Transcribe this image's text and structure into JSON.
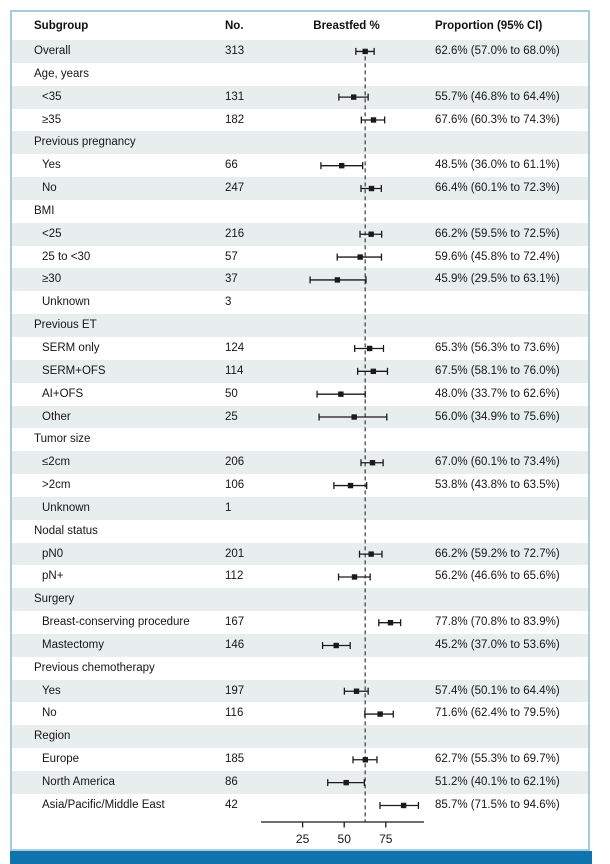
{
  "header": {
    "subgroup": "Subgroup",
    "no": "No.",
    "plot": "Breastfed %",
    "ci": "Proportion (95% CI)"
  },
  "colors": {
    "row_shade": "#e8edee",
    "accent_bar": "#0f74ad",
    "frame_border": "#a9cbdc",
    "marker": "#1a1a1a",
    "reference_line": "#3a3a3a"
  },
  "chart_data": {
    "type": "forest",
    "title": "Breastfed %",
    "xlabel": "",
    "x_axis": {
      "range": [
        0,
        100
      ],
      "ticks": [
        25,
        50,
        75
      ]
    },
    "reference_line": 62.6,
    "legend": null,
    "rows": [
      {
        "label": "Overall",
        "indent": 0,
        "n": "313",
        "est": 62.6,
        "lo": 57.0,
        "hi": 68.0,
        "ci": "62.6% (57.0% to 68.0%)"
      },
      {
        "label": "Age, years",
        "indent": 0,
        "n": null,
        "est": null,
        "lo": null,
        "hi": null,
        "ci": null
      },
      {
        "label": "<35",
        "indent": 1,
        "n": "131",
        "est": 55.7,
        "lo": 46.8,
        "hi": 64.4,
        "ci": "55.7% (46.8% to 64.4%)"
      },
      {
        "label": "≥35",
        "indent": 1,
        "n": "182",
        "est": 67.6,
        "lo": 60.3,
        "hi": 74.3,
        "ci": "67.6% (60.3% to 74.3%)"
      },
      {
        "label": "Previous pregnancy",
        "indent": 0,
        "n": null,
        "est": null,
        "lo": null,
        "hi": null,
        "ci": null
      },
      {
        "label": "Yes",
        "indent": 1,
        "n": "66",
        "est": 48.5,
        "lo": 36.0,
        "hi": 61.1,
        "ci": "48.5% (36.0% to 61.1%)"
      },
      {
        "label": "No",
        "indent": 1,
        "n": "247",
        "est": 66.4,
        "lo": 60.1,
        "hi": 72.3,
        "ci": "66.4% (60.1% to 72.3%)"
      },
      {
        "label": "BMI",
        "indent": 0,
        "n": null,
        "est": null,
        "lo": null,
        "hi": null,
        "ci": null
      },
      {
        "label": "<25",
        "indent": 1,
        "n": "216",
        "est": 66.2,
        "lo": 59.5,
        "hi": 72.5,
        "ci": "66.2% (59.5% to 72.5%)"
      },
      {
        "label": "25 to <30",
        "indent": 1,
        "n": "57",
        "est": 59.6,
        "lo": 45.8,
        "hi": 72.4,
        "ci": "59.6% (45.8% to 72.4%)"
      },
      {
        "label": "≥30",
        "indent": 1,
        "n": "37",
        "est": 45.9,
        "lo": 29.5,
        "hi": 63.1,
        "ci": "45.9% (29.5% to 63.1%)"
      },
      {
        "label": "Unknown",
        "indent": 1,
        "n": "3",
        "est": null,
        "lo": null,
        "hi": null,
        "ci": null
      },
      {
        "label": "Previous ET",
        "indent": 0,
        "n": null,
        "est": null,
        "lo": null,
        "hi": null,
        "ci": null
      },
      {
        "label": "SERM only",
        "indent": 1,
        "n": "124",
        "est": 65.3,
        "lo": 56.3,
        "hi": 73.6,
        "ci": "65.3% (56.3% to 73.6%)"
      },
      {
        "label": "SERM+OFS",
        "indent": 1,
        "n": "114",
        "est": 67.5,
        "lo": 58.1,
        "hi": 76.0,
        "ci": "67.5% (58.1% to 76.0%)"
      },
      {
        "label": "AI+OFS",
        "indent": 1,
        "n": "50",
        "est": 48.0,
        "lo": 33.7,
        "hi": 62.6,
        "ci": "48.0% (33.7% to 62.6%)"
      },
      {
        "label": "Other",
        "indent": 1,
        "n": "25",
        "est": 56.0,
        "lo": 34.9,
        "hi": 75.6,
        "ci": "56.0% (34.9% to 75.6%)"
      },
      {
        "label": "Tumor size",
        "indent": 0,
        "n": null,
        "est": null,
        "lo": null,
        "hi": null,
        "ci": null
      },
      {
        "label": "≤2cm",
        "indent": 1,
        "n": "206",
        "est": 67.0,
        "lo": 60.1,
        "hi": 73.4,
        "ci": "67.0% (60.1% to 73.4%)"
      },
      {
        "label": ">2cm",
        "indent": 1,
        "n": "106",
        "est": 53.8,
        "lo": 43.8,
        "hi": 63.5,
        "ci": "53.8% (43.8% to 63.5%)"
      },
      {
        "label": "Unknown",
        "indent": 1,
        "n": "1",
        "est": null,
        "lo": null,
        "hi": null,
        "ci": null
      },
      {
        "label": "Nodal status",
        "indent": 0,
        "n": null,
        "est": null,
        "lo": null,
        "hi": null,
        "ci": null
      },
      {
        "label": "pN0",
        "indent": 1,
        "n": "201",
        "est": 66.2,
        "lo": 59.2,
        "hi": 72.7,
        "ci": "66.2% (59.2% to 72.7%)"
      },
      {
        "label": "pN+",
        "indent": 1,
        "n": "112",
        "est": 56.2,
        "lo": 46.6,
        "hi": 65.6,
        "ci": "56.2% (46.6% to 65.6%)"
      },
      {
        "label": "Surgery",
        "indent": 0,
        "n": null,
        "est": null,
        "lo": null,
        "hi": null,
        "ci": null
      },
      {
        "label": "Breast-conserving procedure",
        "indent": 1,
        "n": "167",
        "est": 77.8,
        "lo": 70.8,
        "hi": 83.9,
        "ci": "77.8% (70.8% to 83.9%)"
      },
      {
        "label": "Mastectomy",
        "indent": 1,
        "n": "146",
        "est": 45.2,
        "lo": 37.0,
        "hi": 53.6,
        "ci": "45.2% (37.0% to 53.6%)"
      },
      {
        "label": "Previous chemotherapy",
        "indent": 0,
        "n": null,
        "est": null,
        "lo": null,
        "hi": null,
        "ci": null
      },
      {
        "label": "Yes",
        "indent": 1,
        "n": "197",
        "est": 57.4,
        "lo": 50.1,
        "hi": 64.4,
        "ci": "57.4% (50.1% to 64.4%)"
      },
      {
        "label": "No",
        "indent": 1,
        "n": "116",
        "est": 71.6,
        "lo": 62.4,
        "hi": 79.5,
        "ci": "71.6% (62.4% to 79.5%)"
      },
      {
        "label": "Region",
        "indent": 0,
        "n": null,
        "est": null,
        "lo": null,
        "hi": null,
        "ci": null
      },
      {
        "label": "Europe",
        "indent": 1,
        "n": "185",
        "est": 62.7,
        "lo": 55.3,
        "hi": 69.7,
        "ci": "62.7% (55.3% to 69.7%)"
      },
      {
        "label": "North America",
        "indent": 1,
        "n": "86",
        "est": 51.2,
        "lo": 40.1,
        "hi": 62.1,
        "ci": "51.2% (40.1% to 62.1%)"
      },
      {
        "label": "Asia/Pacific/Middle East",
        "indent": 1,
        "n": "42",
        "est": 85.7,
        "lo": 71.5,
        "hi": 94.6,
        "ci": "85.7% (71.5% to 94.6%)"
      }
    ]
  }
}
